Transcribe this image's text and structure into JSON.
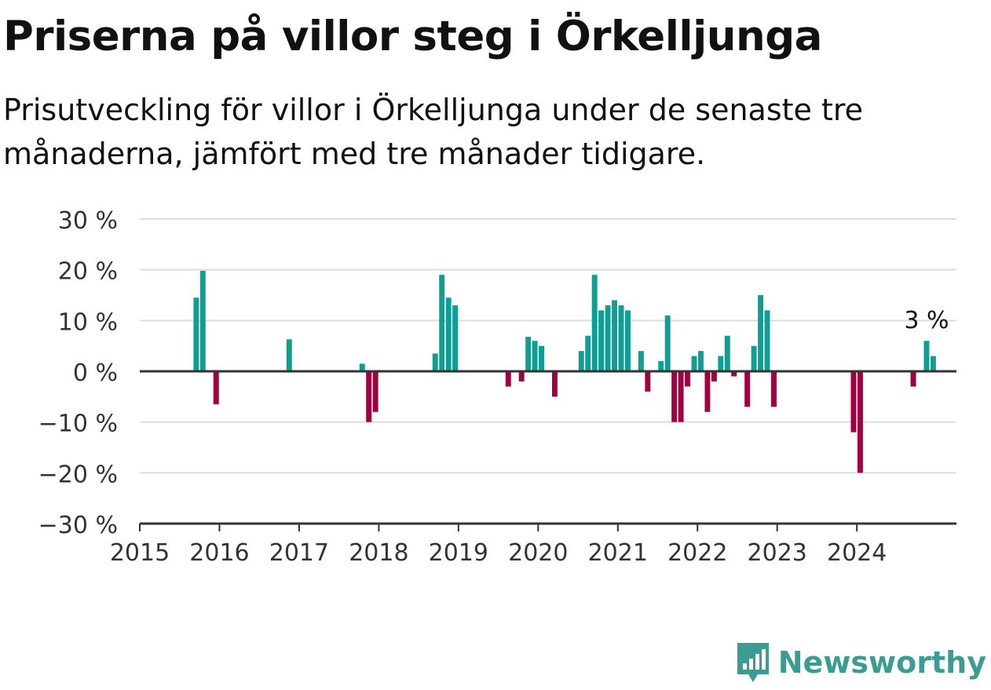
{
  "header": {
    "title": "Priserna på villor steg i Örkelljunga",
    "subtitle": "Prisutveckling för villor i Örkelljunga under de senaste tre månaderna, jämfört med tre månader tidigare."
  },
  "brand": {
    "name": "Newsworthy",
    "icon": "newsworthy-logo-icon",
    "color": "#3a9c92"
  },
  "chart_data": {
    "type": "bar",
    "title": "Priserna på villor steg i Örkelljunga",
    "subtitle": "Prisutveckling för villor i Örkelljunga under de senaste tre månaderna, jämfört med tre månader tidigare.",
    "xlabel": "",
    "ylabel": "",
    "ylim": [
      -30,
      30
    ],
    "y_ticks": [
      30,
      20,
      10,
      0,
      -10,
      -20,
      -30
    ],
    "y_tick_labels": [
      "30 %",
      "20 %",
      "10 %",
      "0 %",
      "−10 %",
      "−20 %",
      "−30 %"
    ],
    "x_range": [
      "2015-01",
      "2025-04"
    ],
    "x_ticks": [
      "2015",
      "2016",
      "2017",
      "2018",
      "2019",
      "2020",
      "2021",
      "2022",
      "2023",
      "2024"
    ],
    "grid": true,
    "colors": {
      "positive": "#0e9f94",
      "negative": "#a10040",
      "grid": "#dddddd",
      "axis": "#333333"
    },
    "annotation": {
      "text": "3 %",
      "date": "2024-11"
    },
    "series": [
      {
        "values": [
          {
            "date": "2015-09",
            "value": 14.5
          },
          {
            "date": "2015-10",
            "value": 19.8
          },
          {
            "date": "2015-12",
            "value": -6.5
          },
          {
            "date": "2016-11",
            "value": 6.3
          },
          {
            "date": "2017-10",
            "value": 1.5
          },
          {
            "date": "2017-11",
            "value": -10
          },
          {
            "date": "2017-12",
            "value": -8
          },
          {
            "date": "2018-09",
            "value": 3.5
          },
          {
            "date": "2018-10",
            "value": 19
          },
          {
            "date": "2018-11",
            "value": 14.5
          },
          {
            "date": "2018-12",
            "value": 13
          },
          {
            "date": "2019-08",
            "value": -3
          },
          {
            "date": "2019-10",
            "value": -2
          },
          {
            "date": "2019-11",
            "value": 6.8
          },
          {
            "date": "2019-12",
            "value": 6
          },
          {
            "date": "2020-01",
            "value": 5
          },
          {
            "date": "2020-03",
            "value": -5
          },
          {
            "date": "2020-07",
            "value": 4
          },
          {
            "date": "2020-08",
            "value": 7
          },
          {
            "date": "2020-09",
            "value": 19
          },
          {
            "date": "2020-10",
            "value": 12
          },
          {
            "date": "2020-11",
            "value": 13
          },
          {
            "date": "2020-12",
            "value": 14
          },
          {
            "date": "2021-01",
            "value": 13
          },
          {
            "date": "2021-02",
            "value": 12
          },
          {
            "date": "2021-04",
            "value": 4
          },
          {
            "date": "2021-05",
            "value": -4
          },
          {
            "date": "2021-07",
            "value": 2
          },
          {
            "date": "2021-08",
            "value": 11
          },
          {
            "date": "2021-09",
            "value": -10
          },
          {
            "date": "2021-10",
            "value": -10
          },
          {
            "date": "2021-11",
            "value": -3
          },
          {
            "date": "2021-12",
            "value": 3
          },
          {
            "date": "2022-01",
            "value": 4
          },
          {
            "date": "2022-02",
            "value": -8
          },
          {
            "date": "2022-03",
            "value": -2
          },
          {
            "date": "2022-04",
            "value": 3
          },
          {
            "date": "2022-05",
            "value": 7
          },
          {
            "date": "2022-06",
            "value": -1
          },
          {
            "date": "2022-08",
            "value": -7
          },
          {
            "date": "2022-09",
            "value": 5
          },
          {
            "date": "2022-10",
            "value": 15
          },
          {
            "date": "2022-11",
            "value": 12
          },
          {
            "date": "2022-12",
            "value": -7
          },
          {
            "date": "2023-12",
            "value": -12
          },
          {
            "date": "2024-01",
            "value": -20
          },
          {
            "date": "2024-09",
            "value": -3
          },
          {
            "date": "2024-11",
            "value": 6
          },
          {
            "date": "2024-12",
            "value": 3
          }
        ]
      }
    ]
  }
}
